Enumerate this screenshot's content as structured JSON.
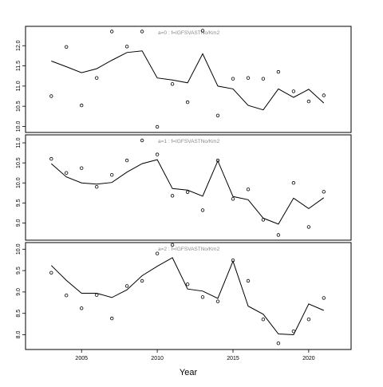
{
  "chart_data": {
    "type": "scatter",
    "xlabel": "Year",
    "xlim": [
      2001.3,
      2022.8
    ],
    "x_ticks": [
      2005,
      2010,
      2015,
      2020
    ],
    "x": [
      2003,
      2004,
      2005,
      2006,
      2007,
      2008,
      2009,
      2010,
      2011,
      2012,
      2013,
      2014,
      2015,
      2016,
      2017,
      2018,
      2019,
      2020,
      2021
    ],
    "panels": [
      {
        "label": "a=0 : f=IGFSVASTNo/Km2",
        "ylim": [
          9.93,
          12.4
        ],
        "y_ticks": [
          "10.0",
          "10.5",
          "11.0",
          "11.5",
          "12.0"
        ],
        "series": [
          {
            "kind": "line",
            "values": [
              11.62,
              11.48,
              11.33,
              11.43,
              11.64,
              11.83,
              11.87,
              11.2,
              11.15,
              11.08,
              11.8,
              11.0,
              10.93,
              10.52,
              10.41,
              10.93,
              10.72,
              10.92,
              10.58
            ]
          },
          {
            "kind": "points",
            "values": [
              10.75,
              11.97,
              10.52,
              11.2,
              12.35,
              11.98,
              12.35,
              9.99,
              11.05,
              10.6,
              12.37,
              10.27,
              11.18,
              11.2,
              11.18,
              11.35,
              10.87,
              10.62,
              10.77
            ]
          }
        ]
      },
      {
        "label": "a=1 : f=IGFSVASTNo/Km2",
        "ylim": [
          8.65,
          11.12
        ],
        "y_ticks": [
          "9.0",
          "9.5",
          "10.0",
          "10.5",
          "11.0"
        ],
        "series": [
          {
            "kind": "line",
            "values": [
              10.48,
              10.15,
              10.0,
              9.97,
              10.01,
              10.27,
              10.48,
              10.58,
              9.86,
              9.82,
              9.67,
              10.55,
              9.66,
              9.58,
              9.12,
              8.97,
              9.62,
              9.36,
              9.63
            ]
          },
          {
            "kind": "points",
            "values": [
              10.6,
              10.25,
              10.37,
              9.9,
              10.2,
              10.56,
              11.06,
              10.71,
              9.68,
              9.77,
              9.32,
              10.56,
              9.6,
              9.84,
              9.08,
              8.7,
              10.0,
              8.9,
              9.78
            ]
          }
        ]
      },
      {
        "label": "a=2 : f=IGFSVASTNo/Km2",
        "ylim": [
          7.73,
          10.08
        ],
        "y_ticks": [
          "8.0",
          "8.5",
          "9.0",
          "9.5",
          "10.0"
        ],
        "series": [
          {
            "kind": "line",
            "values": [
              9.62,
              9.27,
              8.97,
              8.97,
              8.87,
              9.05,
              9.38,
              9.6,
              9.8,
              9.07,
              9.02,
              8.85,
              9.72,
              8.67,
              8.48,
              8.02,
              8.0,
              8.72,
              8.57
            ]
          },
          {
            "kind": "points",
            "values": [
              9.45,
              8.92,
              8.62,
              8.93,
              8.38,
              9.14,
              9.26,
              9.9,
              10.1,
              9.18,
              8.88,
              8.78,
              9.74,
              9.26,
              8.36,
              7.8,
              8.08,
              8.36,
              8.86
            ]
          }
        ]
      }
    ]
  }
}
